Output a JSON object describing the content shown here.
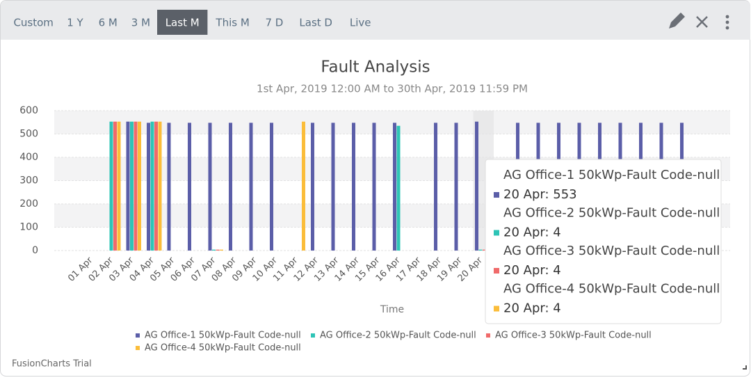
{
  "toolbar": {
    "buttons": [
      "Custom",
      "1 Y",
      "6 M",
      "3 M",
      "Last M",
      "This M",
      "7 D",
      "Last D",
      "Live"
    ],
    "active": 4
  },
  "chart_data": {
    "type": "bar",
    "title": "Fault Analysis",
    "subtitle": "1st Apr, 2019 12:00 AM to 30th Apr, 2019 11:59 PM",
    "x_label": "Time",
    "categories": [
      "01 Apr",
      "02 Apr",
      "03 Apr",
      "04 Apr",
      "05 Apr",
      "06 Apr",
      "07 Apr",
      "08 Apr",
      "09 Apr",
      "10 Apr",
      "11 Apr",
      "12 Apr",
      "13 Apr",
      "14 Apr",
      "15 Apr",
      "16 Apr",
      "17 Apr",
      "18 Apr",
      "19 Apr",
      "20 Apr",
      null,
      null,
      null,
      null,
      null,
      null,
      null,
      null,
      null,
      null
    ],
    "series": [
      {
        "name": "AG Office-1 50kWp-Fault Code-null",
        "color": "#5b5ea8",
        "values": [
          0,
          0,
          553,
          548,
          548,
          548,
          548,
          548,
          548,
          548,
          0,
          548,
          548,
          548,
          548,
          548,
          0,
          548,
          548,
          553,
          0,
          548,
          548,
          548,
          548,
          548,
          548,
          548,
          548,
          548
        ]
      },
      {
        "name": "AG Office-2 50kWp-Fault Code-null",
        "color": "#2ec4b6",
        "values": [
          0,
          553,
          553,
          553,
          0,
          0,
          4,
          0,
          0,
          0,
          0,
          0,
          0,
          0,
          0,
          535,
          0,
          0,
          0,
          4,
          0,
          0,
          0,
          0,
          0,
          0,
          0,
          0,
          0,
          0
        ]
      },
      {
        "name": "AG Office-3 50kWp-Fault Code-null",
        "color": "#f06a6a",
        "values": [
          0,
          553,
          553,
          553,
          0,
          0,
          4,
          0,
          0,
          0,
          0,
          0,
          0,
          0,
          0,
          0,
          0,
          0,
          0,
          4,
          0,
          0,
          0,
          0,
          0,
          0,
          0,
          0,
          0,
          0
        ]
      },
      {
        "name": "AG Office-4 50kWp-Fault Code-null",
        "color": "#fbbd3a",
        "values": [
          0,
          553,
          553,
          553,
          0,
          0,
          4,
          0,
          0,
          0,
          553,
          0,
          0,
          0,
          0,
          0,
          0,
          0,
          0,
          4,
          0,
          0,
          0,
          0,
          0,
          0,
          0,
          0,
          0,
          0
        ]
      }
    ],
    "ylim": [
      0,
      600
    ],
    "yticks": [
      0,
      100,
      200,
      300,
      400,
      500,
      600
    ],
    "grid": true,
    "tooltip_index": 19
  },
  "watermark": "FusionCharts Trial"
}
